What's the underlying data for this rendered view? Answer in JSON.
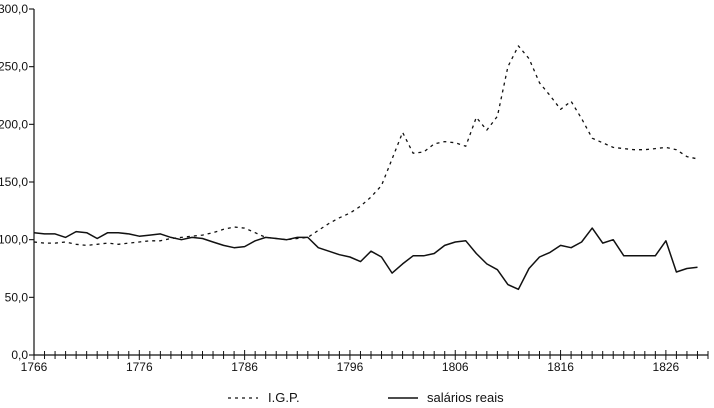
{
  "chart_data": {
    "type": "line",
    "title": "",
    "xlabel": "",
    "ylabel": "",
    "xlim": [
      1766,
      1830
    ],
    "ylim": [
      0,
      300
    ],
    "x_ticks": [
      1766,
      1776,
      1786,
      1796,
      1806,
      1816,
      1826
    ],
    "x_tick_labels": [
      "1766",
      "1776",
      "1786",
      "1796",
      "1806",
      "1816",
      "1826"
    ],
    "y_ticks": [
      0,
      50,
      100,
      150,
      200,
      250,
      300
    ],
    "y_tick_labels": [
      "0,0",
      "50,0",
      "100,0",
      "150,0",
      "200,0",
      "250,0",
      "300,0"
    ],
    "legend_position": "bottom-center",
    "grid": false,
    "series": [
      {
        "name": "I.G.P.",
        "style": "dashed",
        "color": "#111111",
        "x": [
          1766,
          1767,
          1768,
          1769,
          1770,
          1771,
          1772,
          1773,
          1774,
          1775,
          1776,
          1777,
          1778,
          1779,
          1780,
          1781,
          1782,
          1783,
          1784,
          1785,
          1786,
          1787,
          1788,
          1789,
          1790,
          1791,
          1792,
          1793,
          1794,
          1795,
          1796,
          1797,
          1798,
          1799,
          1800,
          1801,
          1802,
          1803,
          1804,
          1805,
          1806,
          1807,
          1808,
          1809,
          1810,
          1811,
          1812,
          1813,
          1814,
          1815,
          1816,
          1817,
          1818,
          1819,
          1820,
          1821,
          1822,
          1823,
          1824,
          1825,
          1826,
          1827,
          1828,
          1829
        ],
        "y": [
          98,
          97,
          97,
          98,
          96,
          95,
          96,
          97,
          96,
          97,
          98,
          99,
          99,
          101,
          102,
          103,
          104,
          106,
          109,
          111,
          110,
          106,
          102,
          101,
          100,
          101,
          102,
          108,
          114,
          119,
          123,
          129,
          137,
          147,
          170,
          193,
          175,
          176,
          183,
          185,
          184,
          181,
          206,
          195,
          207,
          250,
          268,
          257,
          236,
          225,
          213,
          220,
          205,
          188,
          184,
          180,
          179,
          178,
          178,
          179,
          180,
          178,
          172,
          170
        ]
      },
      {
        "name": "salários reais",
        "style": "solid",
        "color": "#111111",
        "x": [
          1766,
          1767,
          1768,
          1769,
          1770,
          1771,
          1772,
          1773,
          1774,
          1775,
          1776,
          1777,
          1778,
          1779,
          1780,
          1781,
          1782,
          1783,
          1784,
          1785,
          1786,
          1787,
          1788,
          1789,
          1790,
          1791,
          1792,
          1793,
          1794,
          1795,
          1796,
          1797,
          1798,
          1799,
          1800,
          1801,
          1802,
          1803,
          1804,
          1805,
          1806,
          1807,
          1808,
          1809,
          1810,
          1811,
          1812,
          1813,
          1814,
          1815,
          1816,
          1817,
          1818,
          1819,
          1820,
          1821,
          1822,
          1823,
          1824,
          1825,
          1826,
          1827,
          1828,
          1829
        ],
        "y": [
          106,
          105,
          105,
          102,
          107,
          106,
          101,
          106,
          106,
          105,
          103,
          104,
          105,
          102,
          100,
          102,
          101,
          98,
          95,
          93,
          94,
          99,
          102,
          101,
          100,
          102,
          102,
          93,
          90,
          87,
          85,
          81,
          90,
          85,
          71,
          79,
          86,
          86,
          88,
          95,
          98,
          99,
          88,
          79,
          74,
          61,
          57,
          75,
          85,
          89,
          95,
          93,
          98,
          110,
          97,
          100,
          86,
          86,
          86,
          86,
          99,
          72,
          75,
          76
        ]
      }
    ]
  }
}
